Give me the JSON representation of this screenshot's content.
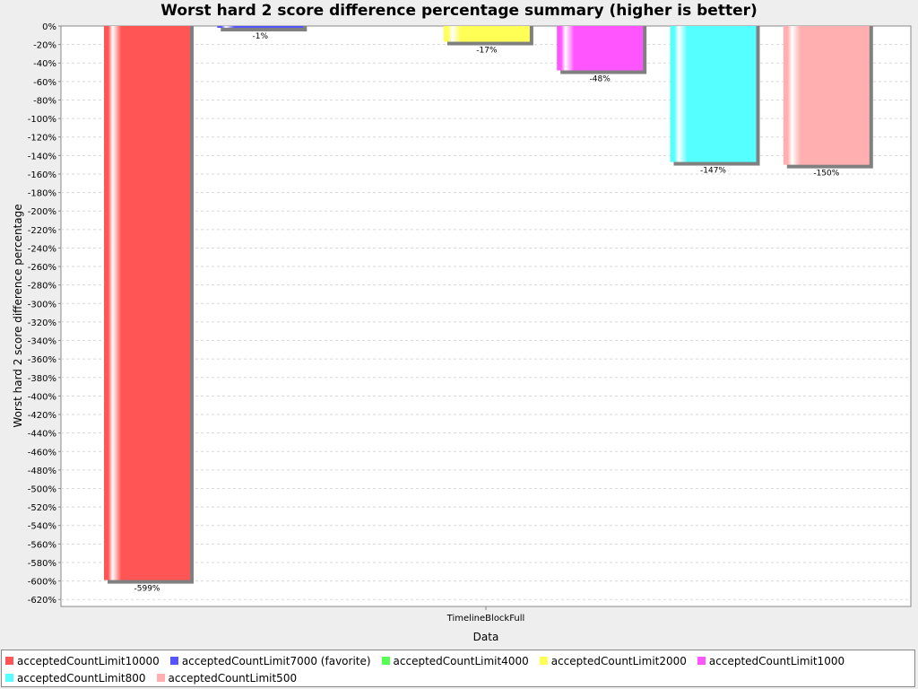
{
  "chart_data": {
    "type": "bar",
    "title": "Worst hard 2 score difference percentage summary (higher is better)",
    "xlabel": "Data",
    "ylabel": "Worst hard 2 score difference percentage",
    "categories": [
      "TimelineBlockFull"
    ],
    "ylim": [
      -630,
      0
    ],
    "ytick_step": 20,
    "grid": true,
    "legend_position": "bottom",
    "series": [
      {
        "name": "acceptedCountLimit10000",
        "value": -599,
        "label": "-599%",
        "color": "#ff5555"
      },
      {
        "name": "acceptedCountLimit7000 (favorite)",
        "value": -1,
        "label": "-1%",
        "color": "#5555ff"
      },
      {
        "name": "acceptedCountLimit4000",
        "value": 0,
        "label": "",
        "color": "#55ff55"
      },
      {
        "name": "acceptedCountLimit2000",
        "value": -17,
        "label": "-17%",
        "color": "#ffff55"
      },
      {
        "name": "acceptedCountLimit1000",
        "value": -48,
        "label": "-48%",
        "color": "#ff55ff"
      },
      {
        "name": "acceptedCountLimit800",
        "value": -147,
        "label": "-147%",
        "color": "#55ffff"
      },
      {
        "name": "acceptedCountLimit500",
        "value": -150,
        "label": "-150%",
        "color": "#ffafaf"
      }
    ]
  }
}
